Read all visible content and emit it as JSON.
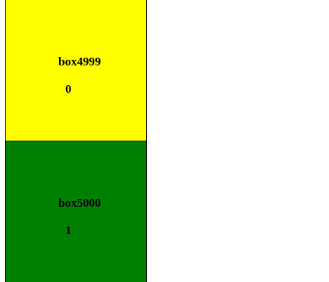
{
  "boxes": [
    {
      "name": "box4999",
      "index": "0",
      "color": "#ffff00"
    },
    {
      "name": "box5000",
      "index": "1",
      "color": "#008000"
    }
  ]
}
